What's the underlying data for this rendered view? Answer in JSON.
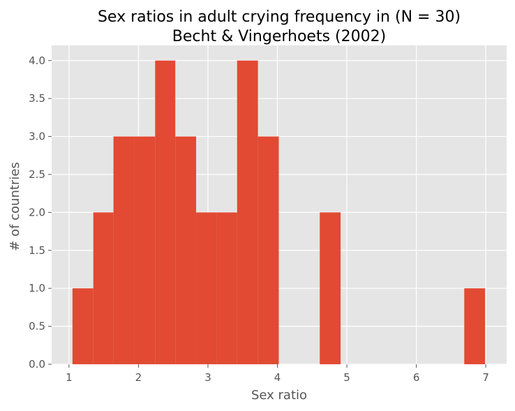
{
  "chart_data": {
    "type": "bar",
    "title": "Sex ratios in adult crying frequency in (N = 30)",
    "subtitle": "Becht & Vingerhoets (2002)",
    "xlabel": "Sex ratio",
    "ylabel": "# of countries",
    "xlim": [
      0.75,
      7.3
    ],
    "ylim": [
      0,
      4.2
    ],
    "x_ticks": [
      "1",
      "2",
      "3",
      "4",
      "5",
      "6",
      "7"
    ],
    "y_ticks": [
      "0.0",
      "0.5",
      "1.0",
      "1.5",
      "2.0",
      "2.5",
      "3.0",
      "3.5",
      "4.0"
    ],
    "grid": true,
    "bins": [
      {
        "start": 1.05,
        "end": 1.35,
        "count": 1
      },
      {
        "start": 1.35,
        "end": 1.64,
        "count": 2
      },
      {
        "start": 1.64,
        "end": 1.94,
        "count": 3
      },
      {
        "start": 1.94,
        "end": 2.24,
        "count": 3
      },
      {
        "start": 2.24,
        "end": 2.53,
        "count": 4
      },
      {
        "start": 2.53,
        "end": 2.83,
        "count": 3
      },
      {
        "start": 2.83,
        "end": 3.13,
        "count": 2
      },
      {
        "start": 3.13,
        "end": 3.42,
        "count": 2
      },
      {
        "start": 3.42,
        "end": 3.72,
        "count": 4
      },
      {
        "start": 3.72,
        "end": 4.02,
        "count": 3
      },
      {
        "start": 4.02,
        "end": 4.31,
        "count": 0
      },
      {
        "start": 4.31,
        "end": 4.61,
        "count": 0
      },
      {
        "start": 4.61,
        "end": 4.91,
        "count": 2
      },
      {
        "start": 4.91,
        "end": 5.2,
        "count": 0
      },
      {
        "start": 5.2,
        "end": 5.5,
        "count": 0
      },
      {
        "start": 5.5,
        "end": 5.8,
        "count": 0
      },
      {
        "start": 5.8,
        "end": 6.09,
        "count": 0
      },
      {
        "start": 6.09,
        "end": 6.39,
        "count": 0
      },
      {
        "start": 6.39,
        "end": 6.69,
        "count": 0
      },
      {
        "start": 6.69,
        "end": 6.99,
        "count": 1
      }
    ],
    "colors": {
      "bar": "#E24A33",
      "plot_background": "#E5E5E5",
      "grid": "#FFFFFF",
      "figure_background": "#FFFFFF"
    }
  }
}
